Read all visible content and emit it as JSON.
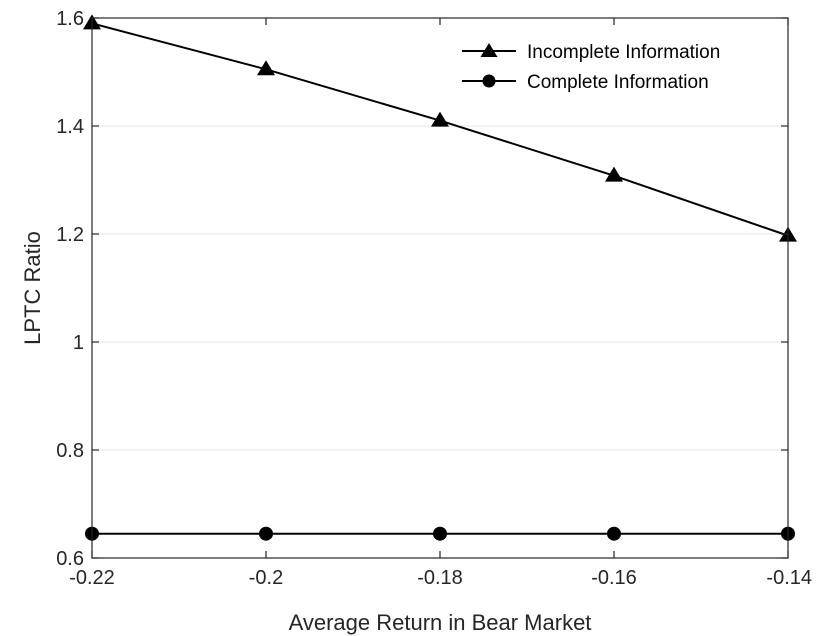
{
  "chart_data": {
    "type": "line",
    "title": "",
    "xlabel": "Average Return in Bear Market",
    "ylabel": "LPTC Ratio",
    "x": [
      -0.22,
      -0.2,
      -0.18,
      -0.16,
      -0.14
    ],
    "x_tick_labels": [
      "-0.22",
      "-0.2",
      "-0.18",
      "-0.16",
      "-0.14"
    ],
    "y_tick_labels": [
      "0.6",
      "0.8",
      "1",
      "1.2",
      "1.4",
      "1.6"
    ],
    "y_ticks": [
      0.6,
      0.8,
      1.0,
      1.2,
      1.4,
      1.6
    ],
    "xlim": [
      -0.22,
      -0.14
    ],
    "ylim": [
      0.6,
      1.6
    ],
    "grid": "horizontal",
    "legend_position": "top-right",
    "series": [
      {
        "name": "Incomplete Information",
        "marker": "triangle",
        "color": "#000000",
        "values": [
          1.59,
          1.505,
          1.41,
          1.308,
          1.197
        ]
      },
      {
        "name": "Complete Information",
        "marker": "circle",
        "color": "#000000",
        "values": [
          0.645,
          0.645,
          0.645,
          0.645,
          0.645
        ]
      }
    ]
  }
}
